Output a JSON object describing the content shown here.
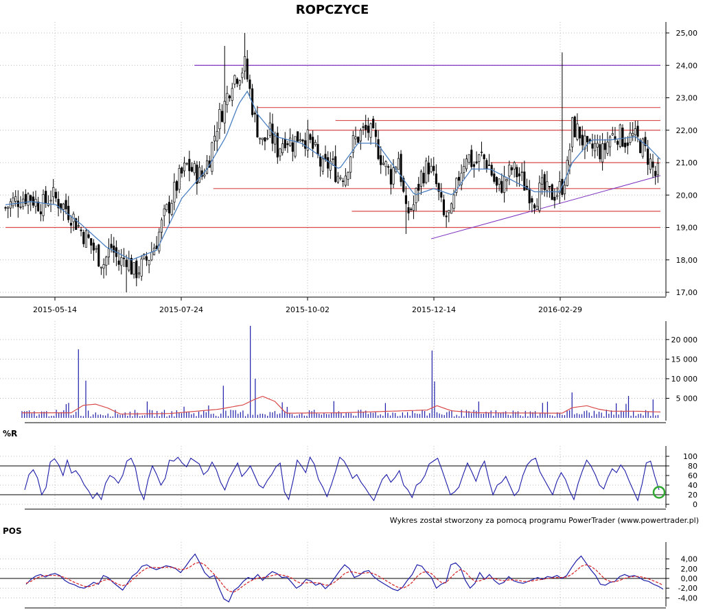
{
  "chart_data": [
    {
      "type": "candlestick",
      "title": "ROPCZYCE",
      "x_ticks": [
        "2015-05-14",
        "2015-07-24",
        "2015-10-02",
        "2015-12-14",
        "2016-02-29"
      ],
      "y_ticks": [
        "25,00",
        "24,00",
        "23,00",
        "22,00",
        "21,00",
        "20,00",
        "19,00",
        "18,00",
        "17,00"
      ],
      "ylim": [
        17,
        25
      ],
      "grid": true,
      "close_path": [
        [
          0,
          19.6
        ],
        [
          6,
          19.8
        ],
        [
          12,
          19.9
        ],
        [
          18,
          20.0
        ],
        [
          24,
          19.8
        ],
        [
          30,
          19.7
        ],
        [
          36,
          20.0
        ],
        [
          42,
          19.8
        ],
        [
          48,
          19.6
        ],
        [
          54,
          19.3
        ],
        [
          60,
          18.9
        ],
        [
          66,
          18.6
        ],
        [
          72,
          18.2
        ],
        [
          78,
          17.9
        ],
        [
          84,
          18.4
        ],
        [
          90,
          17.9
        ],
        [
          96,
          18.1
        ],
        [
          102,
          17.6
        ],
        [
          108,
          17.8
        ],
        [
          114,
          18.1
        ],
        [
          120,
          18.6
        ],
        [
          126,
          19.3
        ],
        [
          132,
          19.9
        ],
        [
          138,
          20.5
        ],
        [
          144,
          20.9
        ],
        [
          150,
          20.7
        ],
        [
          156,
          20.6
        ],
        [
          162,
          21.2
        ],
        [
          168,
          22.2
        ],
        [
          174,
          22.8
        ],
        [
          180,
          23.6
        ],
        [
          186,
          23.8
        ],
        [
          190,
          24.0
        ],
        [
          194,
          23.2
        ],
        [
          198,
          22.3
        ],
        [
          204,
          21.6
        ],
        [
          210,
          21.9
        ],
        [
          216,
          21.4
        ],
        [
          222,
          21.8
        ],
        [
          228,
          21.6
        ],
        [
          234,
          21.9
        ],
        [
          240,
          21.7
        ],
        [
          246,
          21.3
        ],
        [
          252,
          20.8
        ],
        [
          258,
          21.0
        ],
        [
          264,
          20.6
        ],
        [
          270,
          20.7
        ],
        [
          276,
          21.6
        ],
        [
          282,
          21.9
        ],
        [
          288,
          22.0
        ],
        [
          294,
          21.6
        ],
        [
          300,
          21.0
        ],
        [
          306,
          20.6
        ],
        [
          312,
          21.2
        ],
        [
          318,
          19.4
        ],
        [
          324,
          19.7
        ],
        [
          330,
          20.6
        ],
        [
          336,
          20.9
        ],
        [
          342,
          20.3
        ],
        [
          348,
          19.3
        ],
        [
          354,
          19.4
        ],
        [
          360,
          20.6
        ],
        [
          366,
          21.3
        ],
        [
          372,
          20.9
        ],
        [
          378,
          21.2
        ],
        [
          384,
          20.9
        ],
        [
          390,
          20.2
        ],
        [
          396,
          20.4
        ],
        [
          402,
          20.8
        ],
        [
          408,
          20.6
        ],
        [
          414,
          20.2
        ],
        [
          420,
          19.9
        ],
        [
          426,
          20.2
        ],
        [
          432,
          20.0
        ],
        [
          438,
          20.1
        ],
        [
          442,
          20.3
        ],
        [
          446,
          20.8
        ],
        [
          450,
          22.1
        ],
        [
          456,
          21.9
        ],
        [
          462,
          21.3
        ],
        [
          468,
          21.5
        ],
        [
          474,
          21.3
        ],
        [
          480,
          21.8
        ],
        [
          486,
          21.9
        ],
        [
          492,
          21.7
        ],
        [
          498,
          21.8
        ],
        [
          504,
          21.6
        ],
        [
          510,
          21.2
        ],
        [
          516,
          20.6
        ],
        [
          520,
          20.7
        ]
      ],
      "spike_highs": [
        [
          174,
          24.6
        ],
        [
          190,
          25.0
        ],
        [
          442,
          24.4
        ],
        [
          318,
          18.8
        ],
        [
          96,
          17.0
        ]
      ],
      "moving_average": [
        [
          0,
          19.7
        ],
        [
          20,
          19.8
        ],
        [
          40,
          19.7
        ],
        [
          60,
          19.1
        ],
        [
          80,
          18.4
        ],
        [
          100,
          18.0
        ],
        [
          120,
          18.3
        ],
        [
          140,
          19.9
        ],
        [
          160,
          20.8
        ],
        [
          175,
          21.8
        ],
        [
          185,
          22.8
        ],
        [
          192,
          23.2
        ],
        [
          200,
          22.5
        ],
        [
          215,
          21.8
        ],
        [
          235,
          21.6
        ],
        [
          250,
          21.2
        ],
        [
          265,
          20.8
        ],
        [
          280,
          21.6
        ],
        [
          295,
          21.6
        ],
        [
          310,
          20.8
        ],
        [
          325,
          20.0
        ],
        [
          340,
          20.2
        ],
        [
          355,
          20.0
        ],
        [
          370,
          20.8
        ],
        [
          385,
          20.8
        ],
        [
          400,
          20.5
        ],
        [
          420,
          20.1
        ],
        [
          440,
          20.1
        ],
        [
          450,
          21.0
        ],
        [
          465,
          21.7
        ],
        [
          480,
          21.7
        ],
        [
          500,
          21.8
        ],
        [
          510,
          21.5
        ],
        [
          520,
          21.1
        ]
      ],
      "horizontal_lines": [
        {
          "value": 24.0,
          "from": 150,
          "to": 520,
          "color": "#7b2fbe"
        },
        {
          "value": 22.7,
          "from": 200,
          "to": 520,
          "color": "#d94a4a"
        },
        {
          "value": 22.3,
          "from": 262,
          "to": 520,
          "color": "#d94a4a"
        },
        {
          "value": 22.0,
          "from": 240,
          "to": 520,
          "color": "#d94a4a"
        },
        {
          "value": 21.0,
          "from": 385,
          "to": 520,
          "color": "#d94a4a"
        },
        {
          "value": 20.2,
          "from": 165,
          "to": 520,
          "color": "#d94a4a"
        },
        {
          "value": 19.5,
          "from": 275,
          "to": 520,
          "color": "#d94a4a"
        },
        {
          "value": 19.0,
          "from": 0,
          "to": 520,
          "color": "#d94a4a"
        }
      ],
      "trend_line": {
        "from": [
          338,
          18.65
        ],
        "to": [
          520,
          20.6
        ],
        "color": "#7b2fbe"
      },
      "colors": {
        "bull": "#000000",
        "bear": "#000000",
        "ma": "#4a7fc1",
        "grid": "#b8b8b8"
      }
    },
    {
      "type": "bar",
      "name": "volume",
      "y_ticks": [
        "20 000",
        "15 000",
        "10 000",
        "5 000"
      ],
      "ylim": [
        0,
        24000
      ],
      "spikes": [
        [
          46,
          17500
        ],
        [
          51,
          9500
        ],
        [
          163,
          8200
        ],
        [
          186,
          23500
        ],
        [
          189,
          10000
        ],
        [
          334,
          17200
        ],
        [
          335,
          9300
        ],
        [
          447,
          12300
        ],
        [
          448,
          6500
        ],
        [
          493,
          5600
        ],
        [
          514,
          4700
        ]
      ],
      "base_volume": 1100,
      "volume_ma": [
        [
          0,
          1300
        ],
        [
          40,
          1300
        ],
        [
          50,
          3200
        ],
        [
          60,
          3500
        ],
        [
          70,
          2500
        ],
        [
          80,
          1000
        ],
        [
          120,
          1100
        ],
        [
          160,
          2200
        ],
        [
          180,
          3300
        ],
        [
          190,
          4800
        ],
        [
          196,
          5500
        ],
        [
          206,
          4200
        ],
        [
          215,
          1200
        ],
        [
          260,
          1300
        ],
        [
          330,
          2000
        ],
        [
          338,
          3100
        ],
        [
          350,
          1800
        ],
        [
          370,
          1300
        ],
        [
          440,
          1200
        ],
        [
          448,
          2600
        ],
        [
          460,
          3100
        ],
        [
          470,
          2200
        ],
        [
          480,
          1700
        ],
        [
          500,
          1700
        ],
        [
          520,
          1500
        ]
      ],
      "colors": {
        "bars": "#1b1ba8",
        "ma": "#d94a4a"
      }
    },
    {
      "type": "line",
      "name": "%R",
      "label": "%R",
      "y_ticks": [
        "100",
        "80",
        "60",
        "40",
        "20",
        "0"
      ],
      "ylim": [
        0,
        100
      ],
      "reference_lines": [
        80,
        20
      ],
      "values": [
        30,
        62,
        72,
        55,
        20,
        35,
        88,
        95,
        82,
        60,
        92,
        65,
        70,
        58,
        40,
        28,
        12,
        24,
        10,
        44,
        60,
        55,
        44,
        60,
        90,
        96,
        76,
        30,
        10,
        52,
        80,
        62,
        40,
        54,
        92,
        90,
        98,
        86,
        78,
        96,
        90,
        84,
        62,
        70,
        88,
        72,
        46,
        30,
        54,
        70,
        86,
        58,
        68,
        80,
        60,
        40,
        34,
        50,
        62,
        78,
        86,
        26,
        10,
        48,
        92,
        80,
        66,
        98,
        84,
        52,
        36,
        16,
        40,
        68,
        98,
        90,
        74,
        54,
        62,
        46,
        34,
        20,
        8,
        30,
        52,
        62,
        46,
        56,
        70,
        40,
        30,
        14,
        40,
        46,
        60,
        84,
        90,
        96,
        72,
        46,
        20,
        26,
        36,
        62,
        86,
        68,
        48,
        74,
        90,
        52,
        20,
        40,
        46,
        58,
        38,
        18,
        28,
        60,
        82,
        92,
        96,
        68,
        52,
        36,
        20,
        48,
        66,
        52,
        28,
        10,
        44,
        70,
        92,
        80,
        62,
        40,
        32,
        56,
        74,
        66,
        82,
        70,
        48,
        28,
        8,
        42,
        86,
        90,
        58,
        30
      ],
      "colors": {
        "line": "#1b1ba8",
        "circle": "#2ea82e"
      },
      "circle_at": [
        149,
        25
      ]
    },
    {
      "type": "line",
      "name": "POS",
      "label": "POS",
      "y_ticks": [
        "4,00",
        "2,00",
        "0,00",
        "-2,00",
        "-4,00"
      ],
      "ylim": [
        -5,
        5
      ],
      "series": [
        {
          "values": [
            -1.2,
            -0.2,
            0.5,
            0.8,
            0.3,
            0.8,
            1.0,
            0.6,
            -0.4,
            -1.0,
            -1.3,
            -1.8,
            -2.0,
            -1.5,
            -0.8,
            -1.2,
            0.6,
            0.2,
            -0.8,
            -1.6,
            -2.4,
            -1.0,
            0.5,
            1.2,
            2.5,
            2.8,
            2.2,
            1.8,
            2.2,
            2.6,
            2.4,
            2.0,
            1.2,
            2.4,
            3.8,
            5.0,
            3.2,
            1.2,
            0.2,
            0.6,
            -2.0,
            -4.2,
            -4.8,
            -2.5,
            -1.8,
            -0.6,
            0.2,
            -0.2,
            0.8,
            -0.4,
            0.6,
            1.4,
            1.0,
            0.2,
            0.3,
            -0.8,
            -2.0,
            -1.4,
            -0.2,
            -0.5,
            -1.4,
            -1.0,
            -2.1,
            -1.2,
            0.2,
            1.6,
            2.8,
            2.0,
            0.2,
            0.6,
            1.4,
            1.6,
            0.4,
            -0.4,
            -1.0,
            -1.6,
            -2.2,
            -2.5,
            -1.8,
            -0.4,
            0.8,
            2.8,
            2.5,
            1.2,
            0.2,
            -2.0,
            -1.2,
            -0.8,
            2.8,
            3.2,
            2.2,
            -0.4,
            -2.0,
            -1.0,
            1.2,
            -0.2,
            0.8,
            -0.4,
            -1.2,
            -0.8,
            0.4,
            -0.5,
            -0.8,
            -1.0,
            -0.6,
            -0.2,
            0.2,
            -0.2,
            0.4,
            0.2,
            0.6,
            0.0,
            0.6,
            2.2,
            3.6,
            4.6,
            3.2,
            1.8,
            0.6,
            -1.2,
            -1.4,
            -0.8,
            -0.6,
            0.4,
            0.8,
            0.4,
            0.6,
            0.2,
            -0.4,
            -0.6,
            -1.2,
            -1.6,
            -2.2
          ]
        },
        {
          "values": [
            -1.0,
            -0.6,
            0.0,
            0.4,
            0.6,
            0.6,
            0.6,
            0.5,
            0.2,
            -0.3,
            -0.8,
            -1.2,
            -1.6,
            -1.7,
            -1.4,
            -0.9,
            -0.4,
            -0.2,
            -0.6,
            -1.2,
            -1.5,
            -1.2,
            -0.3,
            0.6,
            1.5,
            2.1,
            2.3,
            2.2,
            2.2,
            2.3,
            2.3,
            2.1,
            1.8,
            1.9,
            2.4,
            3.1,
            3.3,
            2.8,
            1.8,
            0.8,
            -0.3,
            -1.6,
            -2.6,
            -2.8,
            -2.3,
            -1.5,
            -0.8,
            -0.3,
            0.1,
            0.2,
            0.3,
            0.6,
            0.8,
            0.7,
            0.5,
            0.1,
            -0.6,
            -1.0,
            -0.9,
            -0.8,
            -0.9,
            -1.0,
            -1.4,
            -1.3,
            -0.7,
            0.1,
            1.0,
            1.4,
            1.3,
            1.0,
            1.1,
            1.2,
            1.0,
            0.5,
            -0.1,
            -0.7,
            -1.3,
            -1.8,
            -2.0,
            -1.6,
            -0.8,
            0.4,
            1.2,
            1.4,
            1.0,
            0.0,
            -0.8,
            -0.9,
            0.2,
            1.2,
            1.8,
            1.4,
            0.2,
            -0.6,
            -0.5,
            -0.1,
            0.1,
            0.0,
            -0.3,
            -0.5,
            -0.3,
            -0.3,
            -0.4,
            -0.6,
            -0.6,
            -0.5,
            -0.3,
            -0.2,
            0.0,
            0.1,
            0.2,
            0.2,
            0.3,
            0.8,
            1.6,
            2.5,
            2.8,
            2.5,
            1.8,
            0.8,
            -0.2,
            -0.6,
            -0.7,
            -0.4,
            0.0,
            0.3,
            0.4,
            0.4,
            0.2,
            -0.1,
            -0.5,
            -0.9,
            -1.4
          ]
        }
      ],
      "colors": {
        "line1": "#1b1ba8",
        "line2": "#d42020"
      }
    }
  ],
  "credit": "Wykres został stworzony za pomocą programu PowerTrader (www.powertrader.pl)"
}
